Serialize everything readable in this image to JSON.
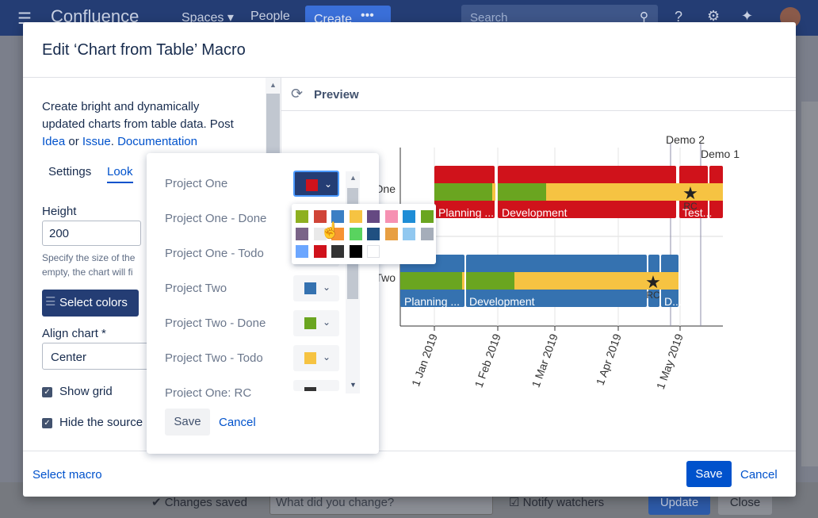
{
  "topbar": {
    "product": "Confluence",
    "spaces": "Spaces",
    "people": "People",
    "create": "Create",
    "search_placeholder": "Search"
  },
  "bottom": {
    "changes_saved": "Changes saved",
    "what_changed_placeholder": "What did you change?",
    "notify": "Notify watchers",
    "update": "Update",
    "close": "Close"
  },
  "modal": {
    "title": "Edit ‘Chart from Table’ Macro",
    "desc_line1": "Create bright and dynamically",
    "desc_line2": "updated charts from table data. Post",
    "link_idea": "Idea",
    "text_or": " or ",
    "link_issue": "Issue",
    "text_dot": ". ",
    "link_docs": "Documentation",
    "tabs": {
      "settings": "Settings",
      "look": "Look"
    },
    "height_label": "Height",
    "height_value": "200",
    "help_text": "Specify the size of the empty, the chart will fi",
    "select_colors": "Select colors",
    "align_label": "Align chart *",
    "align_value": "Center",
    "show_grid": "Show grid",
    "hide_source": "Hide the source",
    "preview": "Preview",
    "select_macro": "Select macro",
    "save": "Save",
    "cancel": "Cancel"
  },
  "popup": {
    "rows": [
      {
        "label": "Project One",
        "color": "#d0121b"
      },
      {
        "label": "Project One - Done",
        "color": "#6aa520"
      },
      {
        "label": "Project One - Todo",
        "color": "#f6c342"
      },
      {
        "label": "Project Two",
        "color": "#3572b0"
      },
      {
        "label": "Project Two - Done",
        "color": "#6aa520"
      },
      {
        "label": "Project Two - Todo",
        "color": "#f6c342"
      },
      {
        "label": "Project One: RC",
        "color": "#333333"
      }
    ],
    "save": "Save",
    "cancel": "Cancel",
    "palette": [
      "#8eb021",
      "#d04437",
      "#3b7fc4",
      "#f6c342",
      "#654982",
      "#f691b2",
      "#1f8dd6",
      "#6aa520",
      "#7a6488",
      "#e9e9e9",
      "#f79232",
      "#59d35f",
      "#205081",
      "#e89f42",
      "#91c8f0",
      "#a5adba",
      "#6ba6ff",
      "#d0121b",
      "#333333",
      "#000000",
      "#ffffff"
    ]
  },
  "chart_data": {
    "type": "gantt",
    "x_ticks": [
      "1 Jan 2019",
      "1 Feb 2019",
      "1 Mar 2019",
      "1 Apr 2019",
      "1 May 2019"
    ],
    "markers": [
      {
        "label": "Demo 2"
      },
      {
        "label": "Demo 1"
      }
    ],
    "rows": [
      {
        "name": "Project One",
        "phases": [
          {
            "label": "Planning ..."
          },
          {
            "label": "Development"
          },
          {
            "label": "Test..."
          }
        ],
        "milestone": "RC"
      },
      {
        "name": "Project Two",
        "phases": [
          {
            "label": "Planning ..."
          },
          {
            "label": "Development"
          },
          {
            "label": "D..."
          }
        ],
        "milestone": "RC"
      }
    ],
    "row_labels_visible": [
      "One",
      "Two"
    ]
  }
}
